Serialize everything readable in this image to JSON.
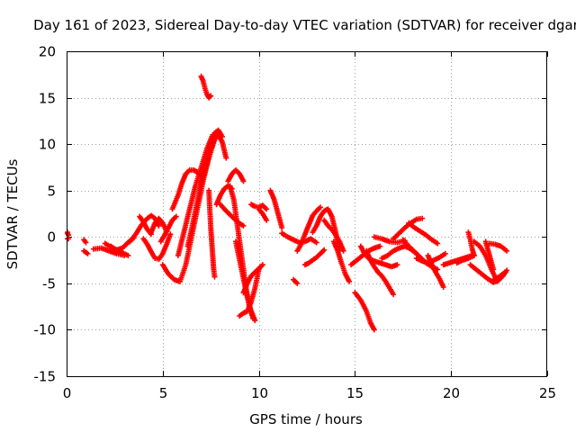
{
  "chart_data": {
    "type": "scatter",
    "title": "Day 161 of 2023, Sidereal Day-to-day VTEC variation (SDTVAR) for receiver dgar",
    "xlabel": "GPS time / hours",
    "ylabel": "SDTVAR / TECUs",
    "xlim": [
      0,
      25
    ],
    "ylim": [
      -15,
      20
    ],
    "xticks": [
      "0",
      "5",
      "10",
      "15",
      "20",
      "25"
    ],
    "yticks": [
      "20",
      "15",
      "10",
      "5",
      "0",
      "-5",
      "-10",
      "-15"
    ],
    "grid": true,
    "marker": "plus",
    "color": "#ff0000",
    "tracks": [
      {
        "name": "t01",
        "x": [
          0.0,
          0.1
        ],
        "y": [
          0.5,
          0.2
        ]
      },
      {
        "name": "t02",
        "x": [
          0.0,
          0.1
        ],
        "y": [
          -0.2,
          -0.2
        ]
      },
      {
        "name": "t03",
        "x": [
          0.9,
          1.0
        ],
        "y": [
          -0.3,
          -0.6
        ]
      },
      {
        "name": "t04",
        "x": [
          0.9,
          1.1
        ],
        "y": [
          -1.5,
          -1.8
        ]
      },
      {
        "name": "t05",
        "x": [
          1.4,
          1.8,
          2.2,
          2.6,
          3.0
        ],
        "y": [
          -1.3,
          -1.2,
          -1.5,
          -1.8,
          -2.0
        ]
      },
      {
        "name": "t06",
        "x": [
          2.0,
          2.4,
          2.8,
          3.2
        ],
        "y": [
          -0.7,
          -1.2,
          -1.6,
          -2.0
        ]
      },
      {
        "name": "t07",
        "x": [
          2.3,
          2.6,
          2.9,
          3.1,
          3.3,
          3.5
        ],
        "y": [
          -1.0,
          -1.4,
          -1.2,
          -0.8,
          -0.4,
          -0.1
        ]
      },
      {
        "name": "t08",
        "x": [
          3.3,
          3.6,
          3.9,
          4.2,
          4.4,
          4.6,
          4.8
        ],
        "y": [
          -0.5,
          0.3,
          1.3,
          2.0,
          2.3,
          2.0,
          1.2
        ]
      },
      {
        "name": "t09",
        "x": [
          3.8,
          4.0,
          4.2,
          4.4
        ],
        "y": [
          2.2,
          1.6,
          0.8,
          0.3
        ]
      },
      {
        "name": "t10",
        "x": [
          4.0,
          4.2,
          4.4,
          4.6,
          4.8,
          5.0,
          5.2,
          5.4
        ],
        "y": [
          -0.2,
          -0.8,
          -1.6,
          -2.3,
          -2.4,
          -1.8,
          -0.8,
          0.3
        ]
      },
      {
        "name": "t11",
        "x": [
          4.4,
          4.6,
          4.8,
          5.0,
          5.2
        ],
        "y": [
          0.5,
          1.5,
          2.0,
          1.5,
          0.6
        ]
      },
      {
        "name": "t12",
        "x": [
          4.9,
          5.1,
          5.3,
          5.5,
          5.7
        ],
        "y": [
          -0.5,
          0.2,
          1.0,
          1.8,
          2.2
        ]
      },
      {
        "name": "t13",
        "x": [
          5.0,
          5.3,
          5.6,
          5.9,
          6.2,
          6.5,
          6.8,
          7.1,
          7.4,
          7.7
        ],
        "y": [
          -3.0,
          -4.0,
          -4.6,
          -4.8,
          -3.0,
          0.0,
          3.0,
          6.0,
          8.5,
          10.5
        ]
      },
      {
        "name": "t14",
        "x": [
          5.5,
          5.8,
          6.0,
          6.2,
          6.4,
          6.6,
          6.8,
          7.0
        ],
        "y": [
          3.0,
          4.5,
          5.8,
          6.8,
          7.2,
          7.2,
          7.0,
          6.5
        ]
      },
      {
        "name": "t15",
        "x": [
          5.8,
          6.1,
          6.4,
          6.7,
          7.0,
          7.3,
          7.6
        ],
        "y": [
          -2.0,
          0.5,
          3.0,
          5.5,
          7.5,
          9.5,
          11.0
        ]
      },
      {
        "name": "t16",
        "x": [
          6.3,
          6.5,
          6.7,
          6.9,
          7.1,
          7.3,
          7.5,
          7.7,
          7.9,
          8.1
        ],
        "y": [
          -1.0,
          0.8,
          2.8,
          4.8,
          6.8,
          8.5,
          10.0,
          11.2,
          11.5,
          10.8
        ]
      },
      {
        "name": "t17",
        "x": [
          6.9,
          7.1,
          7.3,
          7.5,
          7.7,
          7.9,
          8.1,
          8.3
        ],
        "y": [
          4.8,
          6.5,
          8.0,
          9.5,
          10.5,
          11.0,
          10.2,
          8.5
        ]
      },
      {
        "name": "t18",
        "x": [
          7.0,
          7.1,
          7.2,
          7.3,
          7.4,
          7.5
        ],
        "y": [
          17.3,
          16.8,
          16.0,
          15.4,
          15.0,
          15.2
        ]
      },
      {
        "name": "t19",
        "x": [
          7.4,
          7.45,
          7.5,
          7.55,
          7.6,
          7.65,
          7.7
        ],
        "y": [
          5.0,
          3.0,
          1.0,
          -0.5,
          -2.0,
          -3.5,
          -4.3
        ]
      },
      {
        "name": "t20",
        "x": [
          7.8,
          8.0,
          8.2,
          8.4,
          8.6
        ],
        "y": [
          3.5,
          4.5,
          5.2,
          5.5,
          5.2
        ]
      },
      {
        "name": "t21",
        "x": [
          8.0,
          8.3,
          8.6,
          8.9,
          9.2
        ],
        "y": [
          3.5,
          2.8,
          2.2,
          1.6,
          1.2
        ]
      },
      {
        "name": "t22",
        "x": [
          8.4,
          8.6,
          8.8,
          9.0,
          9.2
        ],
        "y": [
          6.0,
          6.8,
          7.2,
          6.8,
          6.0
        ]
      },
      {
        "name": "t23",
        "x": [
          8.8,
          9.0,
          9.2,
          9.4,
          9.6,
          9.8
        ],
        "y": [
          -0.5,
          -2.5,
          -4.5,
          -6.5,
          -8.0,
          -9.0
        ]
      },
      {
        "name": "t24",
        "x": [
          8.5,
          8.7,
          8.9,
          9.1,
          9.3,
          9.5,
          9.7
        ],
        "y": [
          5.5,
          4.0,
          1.0,
          -2.0,
          -5.0,
          -7.5,
          -8.8
        ]
      },
      {
        "name": "t25",
        "x": [
          9.0,
          9.2,
          9.4,
          9.6,
          9.8,
          10.0
        ],
        "y": [
          -8.5,
          -8.2,
          -8.0,
          -7.0,
          -5.5,
          -3.5
        ]
      },
      {
        "name": "t26",
        "x": [
          9.2,
          9.4,
          9.6,
          9.8,
          10.0,
          10.2
        ],
        "y": [
          -6.0,
          -5.0,
          -4.2,
          -3.8,
          -3.4,
          -3.0
        ]
      },
      {
        "name": "t27",
        "x": [
          9.6,
          9.8,
          10.0,
          10.2,
          10.4
        ],
        "y": [
          3.5,
          3.3,
          3.2,
          3.4,
          3.0
        ]
      },
      {
        "name": "t28",
        "x": [
          10.0,
          10.2,
          10.4
        ],
        "y": [
          3.0,
          2.5,
          1.8
        ]
      },
      {
        "name": "t29",
        "x": [
          10.6,
          10.8,
          11.0,
          11.2
        ],
        "y": [
          5.0,
          4.0,
          2.5,
          1.0
        ]
      },
      {
        "name": "t30",
        "x": [
          11.2,
          11.5,
          11.8,
          12.1,
          12.4,
          12.7,
          13.0
        ],
        "y": [
          0.4,
          0.0,
          -0.3,
          -0.6,
          -0.5,
          -0.2,
          -0.6
        ]
      },
      {
        "name": "t31",
        "x": [
          11.8,
          12.0
        ],
        "y": [
          -4.6,
          -5.0
        ]
      },
      {
        "name": "t32",
        "x": [
          12.0,
          12.2,
          12.4,
          12.6,
          12.8,
          13.0,
          13.2
        ],
        "y": [
          -1.5,
          -0.8,
          0.3,
          1.3,
          2.3,
          2.8,
          3.2
        ]
      },
      {
        "name": "t33",
        "x": [
          12.4,
          12.6,
          12.8,
          13.0,
          13.2,
          13.4
        ],
        "y": [
          -3.0,
          -2.8,
          -2.5,
          -2.2,
          -1.8,
          -1.4
        ]
      },
      {
        "name": "t34",
        "x": [
          12.8,
          13.0,
          13.2,
          13.4,
          13.6,
          13.8,
          14.0,
          14.2
        ],
        "y": [
          0.5,
          1.2,
          2.2,
          2.8,
          3.0,
          2.2,
          0.5,
          -1.5
        ]
      },
      {
        "name": "t35",
        "x": [
          13.4,
          13.6,
          13.8,
          14.0,
          14.2,
          14.4
        ],
        "y": [
          1.8,
          1.2,
          0.8,
          0.2,
          -0.5,
          -1.5
        ]
      },
      {
        "name": "t36",
        "x": [
          13.9,
          14.1,
          14.3,
          14.5,
          14.7
        ],
        "y": [
          -0.5,
          -1.5,
          -2.8,
          -4.0,
          -4.8
        ]
      },
      {
        "name": "t37",
        "x": [
          14.8,
          15.1,
          15.4,
          15.7,
          16.0,
          16.3
        ],
        "y": [
          -3.0,
          -2.5,
          -2.0,
          -1.5,
          -1.2,
          -1.0
        ]
      },
      {
        "name": "t38",
        "x": [
          15.0,
          15.3,
          15.6,
          15.8,
          16.0
        ],
        "y": [
          -6.0,
          -6.8,
          -8.0,
          -9.2,
          -10.0
        ]
      },
      {
        "name": "t39",
        "x": [
          15.3,
          15.5,
          15.7,
          16.0,
          16.3,
          16.6,
          16.9,
          17.2
        ],
        "y": [
          -1.0,
          -1.8,
          -2.3,
          -2.6,
          -2.8,
          -3.0,
          -3.2,
          -3.0
        ]
      },
      {
        "name": "t40",
        "x": [
          15.6,
          15.8,
          16.0,
          16.2,
          16.4,
          16.6,
          16.8,
          17.0
        ],
        "y": [
          -1.5,
          -2.5,
          -3.2,
          -3.8,
          -4.2,
          -4.8,
          -5.5,
          -6.2
        ]
      },
      {
        "name": "t41",
        "x": [
          16.0,
          16.4,
          16.8,
          17.2,
          17.6
        ],
        "y": [
          0.0,
          -0.2,
          -0.5,
          -0.6,
          -0.4
        ]
      },
      {
        "name": "t42",
        "x": [
          16.4,
          16.7,
          17.0,
          17.3,
          17.6,
          17.9,
          18.2
        ],
        "y": [
          -2.3,
          -2.0,
          -1.5,
          -1.2,
          -1.0,
          -1.3,
          -1.8
        ]
      },
      {
        "name": "t43",
        "x": [
          17.0,
          17.3,
          17.6,
          17.9,
          18.2,
          18.5
        ],
        "y": [
          -0.2,
          0.4,
          1.0,
          1.5,
          1.9,
          2.0
        ]
      },
      {
        "name": "t44",
        "x": [
          17.5,
          17.8,
          18.1,
          18.4,
          18.7,
          19.0,
          19.3
        ],
        "y": [
          -0.3,
          -1.0,
          -1.6,
          -2.2,
          -2.8,
          -3.2,
          -3.5
        ]
      },
      {
        "name": "t45",
        "x": [
          17.8,
          18.1,
          18.4,
          18.7,
          19.0,
          19.3
        ],
        "y": [
          1.5,
          1.0,
          0.6,
          0.2,
          -0.3,
          -0.7
        ]
      },
      {
        "name": "t46",
        "x": [
          18.2,
          18.5,
          18.8,
          19.1,
          19.4,
          19.7
        ],
        "y": [
          -2.3,
          -2.6,
          -2.8,
          -2.5,
          -2.2,
          -1.8
        ]
      },
      {
        "name": "t47",
        "x": [
          18.8,
          19.0,
          19.2,
          19.4,
          19.6
        ],
        "y": [
          -2.0,
          -3.0,
          -3.8,
          -4.5,
          -5.4
        ]
      },
      {
        "name": "t48",
        "x": [
          19.6,
          19.9,
          20.2,
          20.5,
          20.8,
          21.1
        ],
        "y": [
          -3.0,
          -2.8,
          -2.6,
          -2.4,
          -2.2,
          -2.0
        ]
      },
      {
        "name": "t49",
        "x": [
          20.3,
          20.6,
          20.9,
          21.2
        ],
        "y": [
          -2.8,
          -2.5,
          -2.3,
          -2.0
        ]
      },
      {
        "name": "t50",
        "x": [
          20.9,
          21.0,
          21.1,
          21.2
        ],
        "y": [
          0.5,
          -0.3,
          -1.3,
          -2.0
        ]
      },
      {
        "name": "t51",
        "x": [
          21.0,
          21.3,
          21.6,
          21.9,
          22.2,
          22.5
        ],
        "y": [
          -3.0,
          -3.5,
          -4.0,
          -4.5,
          -4.9,
          -4.6
        ]
      },
      {
        "name": "t52",
        "x": [
          21.2,
          21.5,
          21.8,
          22.1,
          22.4,
          22.7,
          22.9
        ],
        "y": [
          -0.5,
          -1.0,
          -2.0,
          -3.5,
          -4.8,
          -4.2,
          -3.6
        ]
      },
      {
        "name": "t53",
        "x": [
          21.8,
          22.0,
          22.2
        ],
        "y": [
          -0.5,
          -2.0,
          -3.5
        ]
      },
      {
        "name": "t54",
        "x": [
          22.0,
          22.3,
          22.6,
          22.9
        ],
        "y": [
          -0.7,
          -0.8,
          -1.0,
          -1.5
        ]
      },
      {
        "name": "t55",
        "x": [
          22.2,
          22.5,
          22.8
        ],
        "y": [
          -4.6,
          -4.3,
          -3.8
        ]
      }
    ]
  }
}
